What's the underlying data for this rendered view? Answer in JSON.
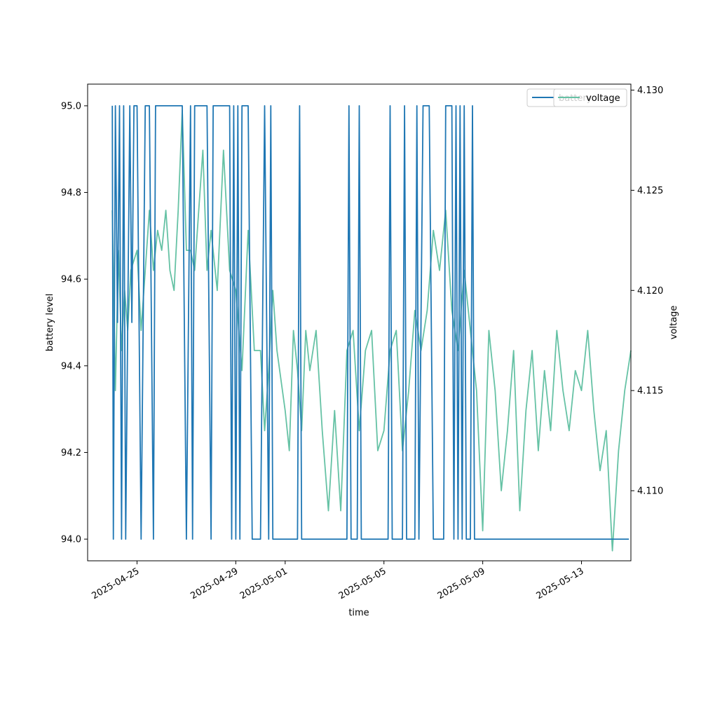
{
  "chart_data": {
    "type": "line",
    "x_type": "date",
    "xlabel": "time",
    "ylabel_left": "battery level",
    "ylabel_right": "voltage",
    "xlim": [
      "2025-04-23",
      "2025-05-15"
    ],
    "ylim_left": [
      93.95,
      95.05
    ],
    "ylim_right": [
      4.1065,
      4.1303
    ],
    "x_ticks": [
      "2025-04-25",
      "2025-04-29",
      "2025-05-01",
      "2025-05-05",
      "2025-05-09",
      "2025-05-13"
    ],
    "y_ticks_left": [
      "94.0",
      "94.2",
      "94.4",
      "94.6",
      "94.8",
      "95.0"
    ],
    "y_ticks_right": [
      "4.110",
      "4.115",
      "4.120",
      "4.125",
      "4.130"
    ],
    "legend_left": "top-right",
    "legend_right": "top-right",
    "grid": false,
    "series": [
      {
        "name": "battery",
        "axis": "left",
        "color": "#1f77b4",
        "points": [
          [
            "2025-04-24T00:00",
            95.0
          ],
          [
            "2025-04-24T01:00",
            94.0
          ],
          [
            "2025-04-24T03:00",
            95.0
          ],
          [
            "2025-04-24T05:00",
            94.5
          ],
          [
            "2025-04-24T07:00",
            95.0
          ],
          [
            "2025-04-24T09:00",
            94.0
          ],
          [
            "2025-04-24T11:00",
            95.0
          ],
          [
            "2025-04-24T13:00",
            94.0
          ],
          [
            "2025-04-24T15:00",
            94.5
          ],
          [
            "2025-04-24T17:00",
            95.0
          ],
          [
            "2025-04-24T19:00",
            94.5
          ],
          [
            "2025-04-24T21:00",
            95.0
          ],
          [
            "2025-04-25T00:00",
            95.0
          ],
          [
            "2025-04-25T04:00",
            94.0
          ],
          [
            "2025-04-25T08:00",
            95.0
          ],
          [
            "2025-04-25T12:00",
            95.0
          ],
          [
            "2025-04-25T16:00",
            94.0
          ],
          [
            "2025-04-25T18:00",
            95.0
          ],
          [
            "2025-04-26T00:00",
            95.0
          ],
          [
            "2025-04-26T12:00",
            95.0
          ],
          [
            "2025-04-26T20:00",
            95.0
          ],
          [
            "2025-04-27T00:00",
            94.0
          ],
          [
            "2025-04-27T04:00",
            95.0
          ],
          [
            "2025-04-27T06:00",
            94.0
          ],
          [
            "2025-04-27T08:00",
            95.0
          ],
          [
            "2025-04-27T20:00",
            95.0
          ],
          [
            "2025-04-28T00:00",
            94.0
          ],
          [
            "2025-04-28T02:00",
            95.0
          ],
          [
            "2025-04-28T18:00",
            95.0
          ],
          [
            "2025-04-28T20:00",
            94.0
          ],
          [
            "2025-04-28T22:00",
            95.0
          ],
          [
            "2025-04-29T00:00",
            94.0
          ],
          [
            "2025-04-29T02:00",
            95.0
          ],
          [
            "2025-04-29T04:00",
            94.0
          ],
          [
            "2025-04-29T06:00",
            95.0
          ],
          [
            "2025-04-29T12:00",
            95.0
          ],
          [
            "2025-04-29T16:00",
            94.0
          ],
          [
            "2025-04-30T00:00",
            94.0
          ],
          [
            "2025-04-30T04:00",
            95.0
          ],
          [
            "2025-04-30T08:00",
            94.0
          ],
          [
            "2025-04-30T10:00",
            95.0
          ],
          [
            "2025-04-30T12:00",
            94.0
          ],
          [
            "2025-05-01T00:00",
            94.0
          ],
          [
            "2025-05-01T12:00",
            94.0
          ],
          [
            "2025-05-01T14:00",
            95.0
          ],
          [
            "2025-05-01T16:00",
            94.0
          ],
          [
            "2025-05-03T12:00",
            94.0
          ],
          [
            "2025-05-03T14:00",
            95.0
          ],
          [
            "2025-05-03T16:00",
            94.0
          ],
          [
            "2025-05-03T22:00",
            94.0
          ],
          [
            "2025-05-04T00:00",
            95.0
          ],
          [
            "2025-05-04T02:00",
            94.0
          ],
          [
            "2025-05-05T04:00",
            94.0
          ],
          [
            "2025-05-05T06:00",
            95.0
          ],
          [
            "2025-05-05T08:00",
            94.0
          ],
          [
            "2025-05-05T18:00",
            94.0
          ],
          [
            "2025-05-05T20:00",
            95.0
          ],
          [
            "2025-05-05T22:00",
            94.0
          ],
          [
            "2025-05-06T06:00",
            94.0
          ],
          [
            "2025-05-06T08:00",
            95.0
          ],
          [
            "2025-05-06T10:00",
            94.0
          ],
          [
            "2025-05-06T14:00",
            95.0
          ],
          [
            "2025-05-06T20:00",
            95.0
          ],
          [
            "2025-05-07T00:00",
            94.0
          ],
          [
            "2025-05-07T10:00",
            94.0
          ],
          [
            "2025-05-07T12:00",
            95.0
          ],
          [
            "2025-05-07T18:00",
            95.0
          ],
          [
            "2025-05-07T20:00",
            94.0
          ],
          [
            "2025-05-07T22:00",
            95.0
          ],
          [
            "2025-05-08T00:00",
            94.0
          ],
          [
            "2025-05-08T02:00",
            95.0
          ],
          [
            "2025-05-08T04:00",
            94.0
          ],
          [
            "2025-05-08T06:00",
            95.0
          ],
          [
            "2025-05-08T08:00",
            94.0
          ],
          [
            "2025-05-08T12:00",
            94.0
          ],
          [
            "2025-05-08T14:00",
            95.0
          ],
          [
            "2025-05-08T16:00",
            94.0
          ],
          [
            "2025-05-10T00:00",
            94.0
          ],
          [
            "2025-05-12T00:00",
            94.0
          ],
          [
            "2025-05-14T00:00",
            94.0
          ],
          [
            "2025-05-14T22:00",
            94.0
          ]
        ]
      },
      {
        "name": "voltage",
        "axis": "right",
        "color": "#66c2a5",
        "points": [
          [
            "2025-04-24T00:00",
            4.124
          ],
          [
            "2025-04-24T03:00",
            4.115
          ],
          [
            "2025-04-24T06:00",
            4.122
          ],
          [
            "2025-04-24T09:00",
            4.117
          ],
          [
            "2025-04-24T12:00",
            4.12
          ],
          [
            "2025-04-24T15:00",
            4.118
          ],
          [
            "2025-04-24T18:00",
            4.121
          ],
          [
            "2025-04-25T00:00",
            4.122
          ],
          [
            "2025-04-25T04:00",
            4.118
          ],
          [
            "2025-04-25T08:00",
            4.121
          ],
          [
            "2025-04-25T12:00",
            4.124
          ],
          [
            "2025-04-25T16:00",
            4.121
          ],
          [
            "2025-04-25T20:00",
            4.123
          ],
          [
            "2025-04-26T00:00",
            4.122
          ],
          [
            "2025-04-26T04:00",
            4.124
          ],
          [
            "2025-04-26T08:00",
            4.121
          ],
          [
            "2025-04-26T12:00",
            4.12
          ],
          [
            "2025-04-26T16:00",
            4.124
          ],
          [
            "2025-04-26T20:00",
            4.129
          ],
          [
            "2025-04-27T00:00",
            4.122
          ],
          [
            "2025-04-27T04:00",
            4.122
          ],
          [
            "2025-04-27T08:00",
            4.121
          ],
          [
            "2025-04-27T12:00",
            4.124
          ],
          [
            "2025-04-27T16:00",
            4.127
          ],
          [
            "2025-04-27T20:00",
            4.121
          ],
          [
            "2025-04-28T00:00",
            4.123
          ],
          [
            "2025-04-28T06:00",
            4.12
          ],
          [
            "2025-04-28T12:00",
            4.127
          ],
          [
            "2025-04-28T18:00",
            4.121
          ],
          [
            "2025-04-29T00:00",
            4.12
          ],
          [
            "2025-04-29T06:00",
            4.116
          ],
          [
            "2025-04-29T12:00",
            4.123
          ],
          [
            "2025-04-29T18:00",
            4.117
          ],
          [
            "2025-04-30T00:00",
            4.117
          ],
          [
            "2025-04-30T04:00",
            4.113
          ],
          [
            "2025-04-30T08:00",
            4.116
          ],
          [
            "2025-04-30T12:00",
            4.12
          ],
          [
            "2025-04-30T16:00",
            4.117
          ],
          [
            "2025-05-01T00:00",
            4.114
          ],
          [
            "2025-05-01T04:00",
            4.112
          ],
          [
            "2025-05-01T08:00",
            4.118
          ],
          [
            "2025-05-01T12:00",
            4.116
          ],
          [
            "2025-05-01T16:00",
            4.113
          ],
          [
            "2025-05-01T20:00",
            4.118
          ],
          [
            "2025-05-02T00:00",
            4.116
          ],
          [
            "2025-05-02T06:00",
            4.118
          ],
          [
            "2025-05-02T12:00",
            4.113
          ],
          [
            "2025-05-02T18:00",
            4.109
          ],
          [
            "2025-05-03T00:00",
            4.114
          ],
          [
            "2025-05-03T06:00",
            4.109
          ],
          [
            "2025-05-03T12:00",
            4.117
          ],
          [
            "2025-05-03T18:00",
            4.118
          ],
          [
            "2025-05-04T00:00",
            4.113
          ],
          [
            "2025-05-04T06:00",
            4.117
          ],
          [
            "2025-05-04T12:00",
            4.118
          ],
          [
            "2025-05-04T18:00",
            4.112
          ],
          [
            "2025-05-05T00:00",
            4.113
          ],
          [
            "2025-05-05T06:00",
            4.117
          ],
          [
            "2025-05-05T12:00",
            4.118
          ],
          [
            "2025-05-05T18:00",
            4.112
          ],
          [
            "2025-05-06T00:00",
            4.115
          ],
          [
            "2025-05-06T06:00",
            4.119
          ],
          [
            "2025-05-06T12:00",
            4.117
          ],
          [
            "2025-05-06T18:00",
            4.119
          ],
          [
            "2025-05-07T00:00",
            4.123
          ],
          [
            "2025-05-07T06:00",
            4.121
          ],
          [
            "2025-05-07T12:00",
            4.124
          ],
          [
            "2025-05-07T18:00",
            4.119
          ],
          [
            "2025-05-08T00:00",
            4.117
          ],
          [
            "2025-05-08T06:00",
            4.121
          ],
          [
            "2025-05-08T12:00",
            4.118
          ],
          [
            "2025-05-08T18:00",
            4.115
          ],
          [
            "2025-05-09T00:00",
            4.108
          ],
          [
            "2025-05-09T06:00",
            4.118
          ],
          [
            "2025-05-09T12:00",
            4.115
          ],
          [
            "2025-05-09T18:00",
            4.11
          ],
          [
            "2025-05-10T00:00",
            4.113
          ],
          [
            "2025-05-10T06:00",
            4.117
          ],
          [
            "2025-05-10T12:00",
            4.109
          ],
          [
            "2025-05-10T18:00",
            4.114
          ],
          [
            "2025-05-11T00:00",
            4.117
          ],
          [
            "2025-05-11T06:00",
            4.112
          ],
          [
            "2025-05-11T12:00",
            4.116
          ],
          [
            "2025-05-11T18:00",
            4.113
          ],
          [
            "2025-05-12T00:00",
            4.118
          ],
          [
            "2025-05-12T06:00",
            4.115
          ],
          [
            "2025-05-12T12:00",
            4.113
          ],
          [
            "2025-05-12T18:00",
            4.116
          ],
          [
            "2025-05-13T00:00",
            4.115
          ],
          [
            "2025-05-13T06:00",
            4.118
          ],
          [
            "2025-05-13T12:00",
            4.114
          ],
          [
            "2025-05-13T18:00",
            4.111
          ],
          [
            "2025-05-14T00:00",
            4.113
          ],
          [
            "2025-05-14T06:00",
            4.107
          ],
          [
            "2025-05-14T12:00",
            4.112
          ],
          [
            "2025-05-14T18:00",
            4.115
          ],
          [
            "2025-05-15T00:00",
            4.117
          ]
        ]
      }
    ]
  }
}
